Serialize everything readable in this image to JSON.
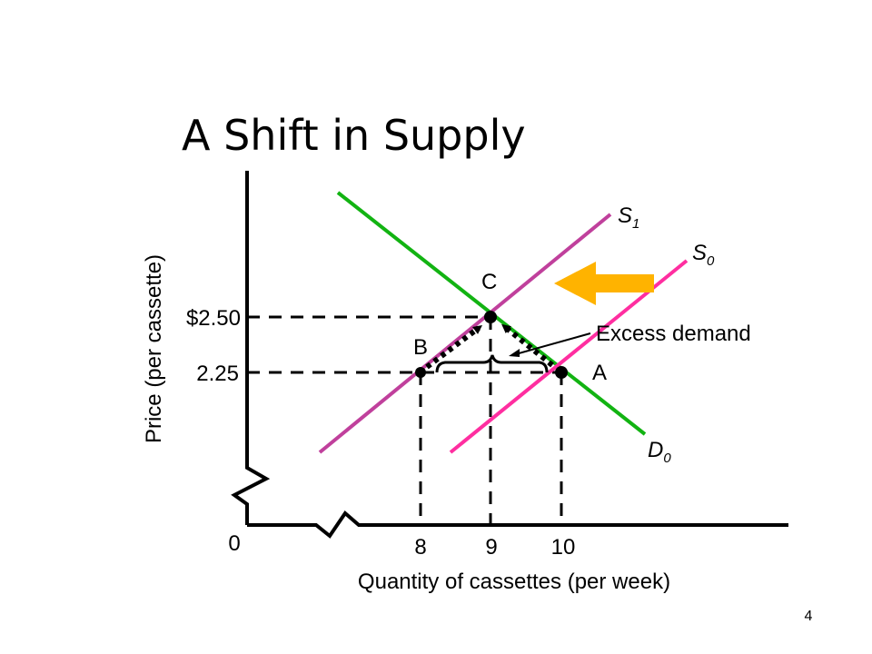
{
  "slide": {
    "title": "A Shift in Supply",
    "page_number": "4"
  },
  "diagram": {
    "y_axis_label": "Price (per cassette)",
    "x_axis_label": "Quantity of cassettes (per week)",
    "origin_label": "0",
    "price_ticks": [
      "$2.50",
      "2.25"
    ],
    "quantity_ticks": [
      "8",
      "9",
      "10"
    ],
    "curves": {
      "s1": {
        "letter": "S",
        "sub": "1",
        "color": "#c0409c"
      },
      "s0": {
        "letter": "S",
        "sub": "0",
        "color": "#ff2ea0"
      },
      "d0": {
        "letter": "D",
        "sub": "0",
        "color": "#12b312"
      }
    },
    "points": {
      "a": "A",
      "b": "B",
      "c": "C"
    },
    "annotation": "Excess demand",
    "shift_arrow_color": "#ffb300"
  }
}
